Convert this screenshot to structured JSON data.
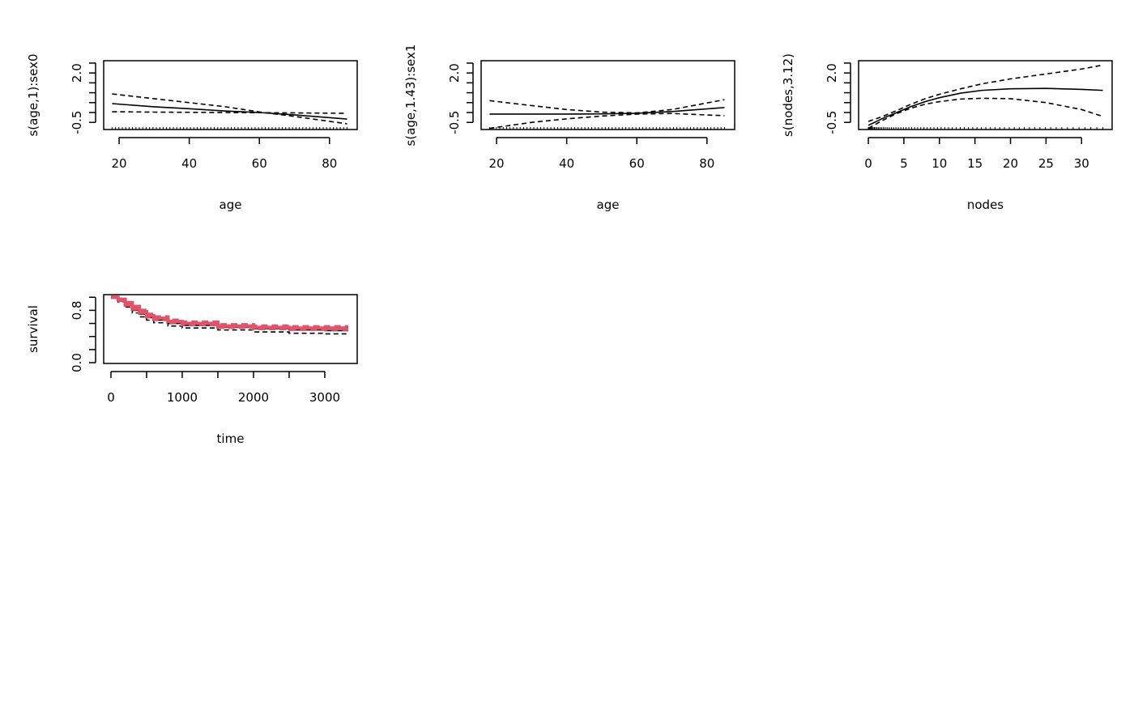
{
  "chart_data": [
    {
      "type": "line",
      "xlabel": "age",
      "ylabel": "s(age,1):sex0",
      "xlim": [
        15.6,
        87.9
      ],
      "ylim": [
        -0.86,
        2.62
      ],
      "xticks": [
        20,
        40,
        60,
        80
      ],
      "xtick_labels": [
        "20",
        "40",
        "60",
        "80"
      ],
      "yticks": [
        -0.5,
        0,
        0.5,
        1,
        1.5,
        2,
        2.5
      ],
      "ytick_labels": [
        "-0.5",
        "",
        "",
        "",
        "",
        "2.0",
        ""
      ],
      "x": [
        18,
        30,
        40,
        50,
        60,
        70,
        85
      ],
      "series": [
        {
          "style": "solid",
          "values": [
            0.45,
            0.29,
            0.19,
            0.08,
            0.0,
            -0.12,
            -0.33
          ]
        },
        {
          "style": "dashed",
          "values": [
            0.94,
            0.7,
            0.5,
            0.3,
            0.03,
            -0.2,
            -0.57
          ]
        },
        {
          "style": "dashed",
          "values": [
            0.04,
            0.02,
            0.01,
            0.0,
            -0.01,
            -0.02,
            -0.04
          ]
        }
      ],
      "rug": true
    },
    {
      "type": "line",
      "xlabel": "age",
      "ylabel": "s(age,1.43):sex1",
      "xlim": [
        15.6,
        87.9
      ],
      "ylim": [
        -0.86,
        2.62
      ],
      "xticks": [
        20,
        40,
        60,
        80
      ],
      "xtick_labels": [
        "20",
        "40",
        "60",
        "80"
      ],
      "yticks": [
        -0.5,
        0,
        0.5,
        1,
        1.5,
        2,
        2.5
      ],
      "ytick_labels": [
        "-0.5",
        "",
        "",
        "",
        "",
        "2.0",
        ""
      ],
      "x": [
        18,
        30,
        40,
        50,
        60,
        70,
        85
      ],
      "series": [
        {
          "style": "solid",
          "values": [
            -0.08,
            -0.08,
            -0.08,
            -0.07,
            -0.04,
            0.05,
            0.25
          ]
        },
        {
          "style": "dashed",
          "values": [
            0.6,
            0.35,
            0.15,
            0.02,
            -0.02,
            0.15,
            0.65
          ]
        },
        {
          "style": "dashed",
          "values": [
            -0.8,
            -0.5,
            -0.32,
            -0.18,
            -0.08,
            -0.05,
            -0.16
          ]
        }
      ],
      "rug": true
    },
    {
      "type": "line",
      "xlabel": "nodes",
      "ylabel": "s(nodes,3.12)",
      "xlim": [
        -1.37,
        34.3
      ],
      "ylim": [
        -0.86,
        2.62
      ],
      "xticks": [
        0,
        5,
        10,
        15,
        20,
        25,
        30
      ],
      "xtick_labels": [
        "0",
        "5",
        "10",
        "15",
        "20",
        "25",
        "30"
      ],
      "yticks": [
        -0.5,
        0,
        0.5,
        1,
        1.5,
        2,
        2.5
      ],
      "ytick_labels": [
        "-0.5",
        "",
        "",
        "",
        "",
        "2.0",
        ""
      ],
      "x": [
        0,
        2,
        4,
        6,
        8,
        10,
        13,
        16,
        20,
        25,
        30,
        33
      ],
      "series": [
        {
          "style": "solid",
          "values": [
            -0.65,
            -0.3,
            0.0,
            0.3,
            0.55,
            0.75,
            0.98,
            1.12,
            1.2,
            1.22,
            1.17,
            1.12
          ]
        },
        {
          "style": "dashed",
          "values": [
            -0.45,
            -0.2,
            0.1,
            0.42,
            0.7,
            0.92,
            1.2,
            1.45,
            1.7,
            1.95,
            2.2,
            2.4
          ]
        },
        {
          "style": "dashed",
          "values": [
            -0.8,
            -0.4,
            -0.05,
            0.22,
            0.42,
            0.55,
            0.68,
            0.72,
            0.7,
            0.5,
            0.15,
            -0.2
          ]
        }
      ],
      "rug": true
    },
    {
      "type": "line",
      "xlabel": "time",
      "ylabel": "survival",
      "xlim": [
        -102,
        3455
      ],
      "ylim": [
        -0.012,
        1.04
      ],
      "xticks": [
        0,
        500,
        1000,
        1500,
        2000,
        2500,
        3000
      ],
      "xtick_labels": [
        "0",
        "",
        "1000",
        "",
        "2000",
        "",
        "3000"
      ],
      "yticks": [
        0,
        0.2,
        0.4,
        0.6,
        0.8,
        1.0
      ],
      "ytick_labels": [
        "0.0",
        "",
        "",
        "",
        "0.8",
        ""
      ],
      "x": [
        0,
        100,
        200,
        300,
        400,
        500,
        600,
        800,
        1000,
        1500,
        2000,
        2500,
        3000,
        3330
      ],
      "series": [
        {
          "color": "#000000",
          "style": "solid",
          "values": [
            1,
            0.95,
            0.88,
            0.8,
            0.74,
            0.69,
            0.65,
            0.6,
            0.57,
            0.54,
            0.52,
            0.5,
            0.49,
            0.49
          ]
        },
        {
          "color": "#000000",
          "style": "dashed",
          "values": [
            1,
            0.96,
            0.9,
            0.83,
            0.77,
            0.72,
            0.68,
            0.63,
            0.6,
            0.57,
            0.55,
            0.53,
            0.52,
            0.52
          ]
        },
        {
          "color": "#000000",
          "style": "dashed",
          "values": [
            1,
            0.93,
            0.85,
            0.76,
            0.7,
            0.65,
            0.61,
            0.56,
            0.53,
            0.5,
            0.47,
            0.45,
            0.44,
            0.44
          ]
        },
        {
          "color": "#DF536B",
          "style": "solid",
          "values": [
            1,
            0.96,
            0.9,
            0.84,
            0.78,
            0.72,
            0.68,
            0.63,
            0.6,
            0.56,
            0.54,
            0.53,
            0.53,
            0.53
          ]
        },
        {
          "color": "#DF536B",
          "style": "dashed",
          "values": [
            1,
            0.97,
            0.92,
            0.86,
            0.8,
            0.74,
            0.7,
            0.65,
            0.62,
            0.58,
            0.56,
            0.55,
            0.55,
            0.55
          ]
        },
        {
          "color": "#DF536B",
          "style": "dashed",
          "values": [
            1,
            0.95,
            0.88,
            0.82,
            0.76,
            0.7,
            0.66,
            0.61,
            0.58,
            0.54,
            0.52,
            0.51,
            0.51,
            0.51
          ]
        }
      ],
      "rug": false
    }
  ]
}
